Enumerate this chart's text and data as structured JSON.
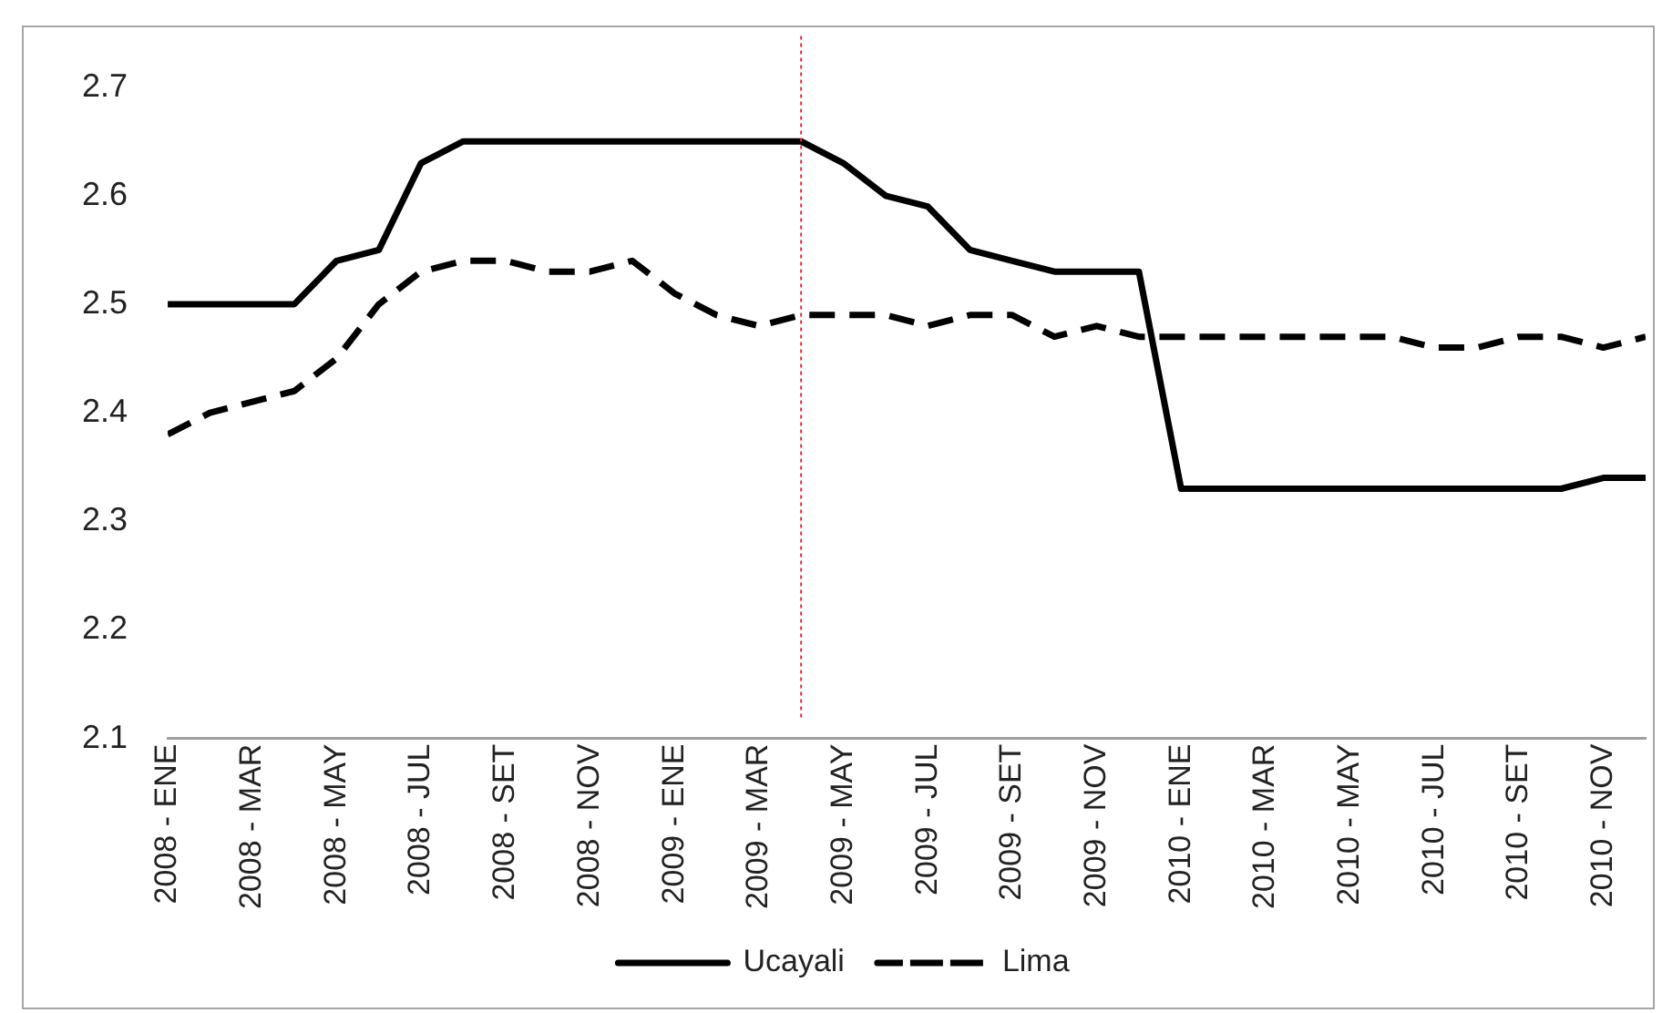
{
  "chart_data": {
    "type": "line",
    "x": [
      "2008-01",
      "2008-02",
      "2008-03",
      "2008-04",
      "2008-05",
      "2008-06",
      "2008-07",
      "2008-08",
      "2008-09",
      "2008-10",
      "2008-11",
      "2008-12",
      "2009-01",
      "2009-02",
      "2009-03",
      "2009-04",
      "2009-05",
      "2009-06",
      "2009-07",
      "2009-08",
      "2009-09",
      "2009-10",
      "2009-11",
      "2009-12",
      "2010-01",
      "2010-02",
      "2010-03",
      "2010-04",
      "2010-05",
      "2010-06",
      "2010-07",
      "2010-08",
      "2010-09",
      "2010-10",
      "2010-11",
      "2010-12"
    ],
    "series": [
      {
        "name": "Ucayali",
        "color": "#000000",
        "line_style": "solid",
        "values": [
          2.5,
          2.5,
          2.5,
          2.5,
          2.54,
          2.55,
          2.63,
          2.65,
          2.65,
          2.65,
          2.65,
          2.65,
          2.65,
          2.65,
          2.65,
          2.65,
          2.63,
          2.6,
          2.59,
          2.55,
          2.54,
          2.53,
          2.53,
          2.53,
          2.33,
          2.33,
          2.33,
          2.33,
          2.33,
          2.33,
          2.33,
          2.33,
          2.33,
          2.33,
          2.34,
          2.34
        ]
      },
      {
        "name": "Lima",
        "color": "#000000",
        "line_style": "dashed",
        "values": [
          2.38,
          2.4,
          2.41,
          2.42,
          2.45,
          2.5,
          2.53,
          2.54,
          2.54,
          2.53,
          2.53,
          2.54,
          2.51,
          2.49,
          2.48,
          2.49,
          2.49,
          2.49,
          2.48,
          2.49,
          2.49,
          2.47,
          2.48,
          2.47,
          2.47,
          2.47,
          2.47,
          2.47,
          2.47,
          2.47,
          2.46,
          2.46,
          2.47,
          2.47,
          2.46,
          2.47
        ]
      }
    ],
    "xlim": [
      "2008-01",
      "2010-12"
    ],
    "xticks": [
      {
        "value": "2008-01",
        "label": "2008 - ENE"
      },
      {
        "value": "2008-03",
        "label": "2008 - MAR"
      },
      {
        "value": "2008-05",
        "label": "2008 - MAY"
      },
      {
        "value": "2008-07",
        "label": "2008 - JUL"
      },
      {
        "value": "2008-09",
        "label": "2008 - SET"
      },
      {
        "value": "2008-11",
        "label": "2008 - NOV"
      },
      {
        "value": "2009-01",
        "label": "2009 - ENE"
      },
      {
        "value": "2009-03",
        "label": "2009 - MAR"
      },
      {
        "value": "2009-05",
        "label": "2009 - MAY"
      },
      {
        "value": "2009-07",
        "label": "2009 - JUL"
      },
      {
        "value": "2009-09",
        "label": "2009 - SET"
      },
      {
        "value": "2009-11",
        "label": "2009 - NOV"
      },
      {
        "value": "2010-01",
        "label": "2010 - ENE"
      },
      {
        "value": "2010-03",
        "label": "2010 - MAR"
      },
      {
        "value": "2010-05",
        "label": "2010 - MAY"
      },
      {
        "value": "2010-07",
        "label": "2010 - JUL"
      },
      {
        "value": "2010-09",
        "label": "2010 - SET"
      },
      {
        "value": "2010-11",
        "label": "2010 - NOV"
      }
    ],
    "ylim": [
      2.1,
      2.7
    ],
    "yticks": [
      2.1,
      2.2,
      2.3,
      2.4,
      2.5,
      2.6,
      2.7
    ],
    "ref_lines": [
      {
        "axis": "x",
        "value": "2009-04",
        "color": "#e0303a",
        "line_style": "dotted"
      }
    ],
    "grid": false,
    "legend": "bottom",
    "marker": "none"
  }
}
